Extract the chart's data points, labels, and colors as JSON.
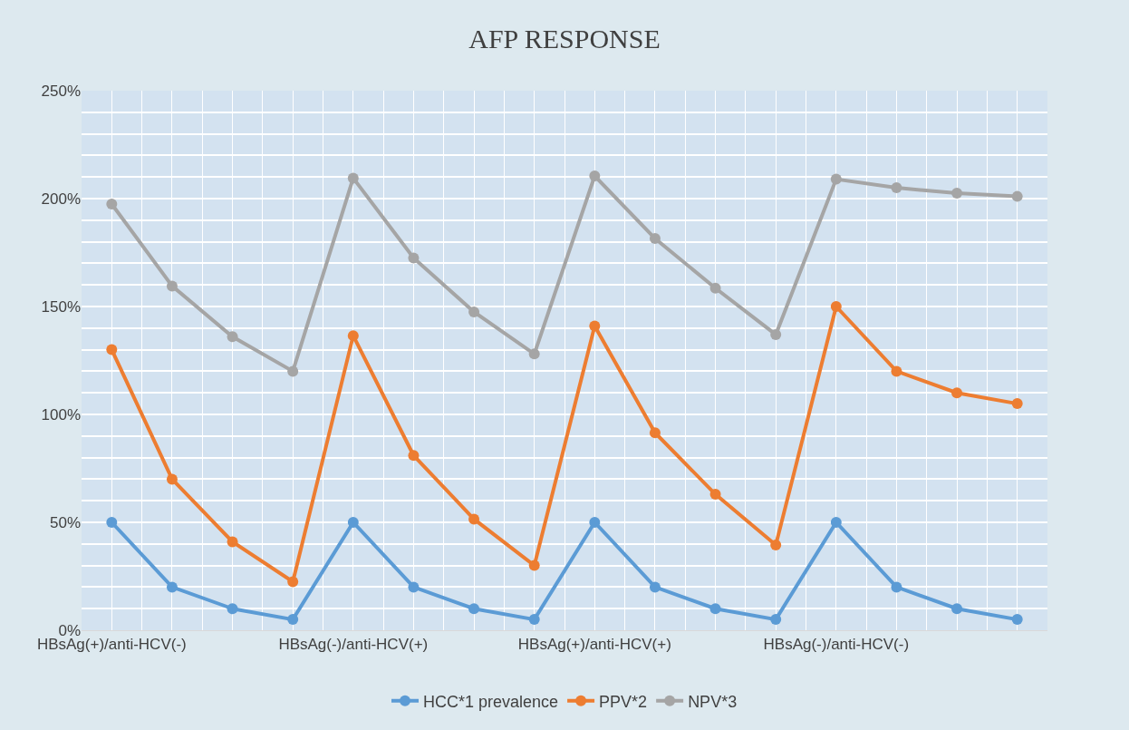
{
  "chart_data": {
    "type": "line",
    "title": "AFP RESPONSE",
    "categories": [
      "HBsAg(+)/anti-HCV(-)",
      null,
      null,
      null,
      "HBsAg(-)/anti-HCV(+)",
      null,
      null,
      null,
      "HBsAg(+)/anti-HCV(+)",
      null,
      null,
      null,
      "HBsAg(-)/anti-HCV(-)",
      null,
      null,
      null
    ],
    "series": [
      {
        "name": "HCC*1 prevalence",
        "color": "#5b9bd5",
        "values": [
          50,
          20,
          10,
          5,
          50,
          20,
          10,
          5,
          50,
          20,
          10,
          5,
          50,
          20,
          10,
          5
        ]
      },
      {
        "name": "PPV*2",
        "color": "#ed7d31",
        "values": [
          130,
          70,
          41,
          22.5,
          136.5,
          81,
          51.5,
          30,
          141,
          91.5,
          63,
          39.5,
          150,
          120,
          110,
          105
        ]
      },
      {
        "name": "NPV*3",
        "color": "#a5a5a5",
        "values": [
          197.5,
          159.5,
          136,
          120,
          209.5,
          172.5,
          147.5,
          128,
          210.5,
          181.5,
          158.5,
          137,
          209,
          205,
          202.5,
          201
        ]
      }
    ],
    "ylim": [
      0,
      250
    ],
    "yticks": [
      {
        "value": 0,
        "label": "0%"
      },
      {
        "value": 50,
        "label": "50%"
      },
      {
        "value": 100,
        "label": "100%"
      },
      {
        "value": 150,
        "label": "150%"
      },
      {
        "value": 200,
        "label": "200%"
      },
      {
        "value": 250,
        "label": "250%"
      }
    ],
    "grid": true,
    "legend": "bottom",
    "marker": "circle",
    "line_style": "solid"
  }
}
